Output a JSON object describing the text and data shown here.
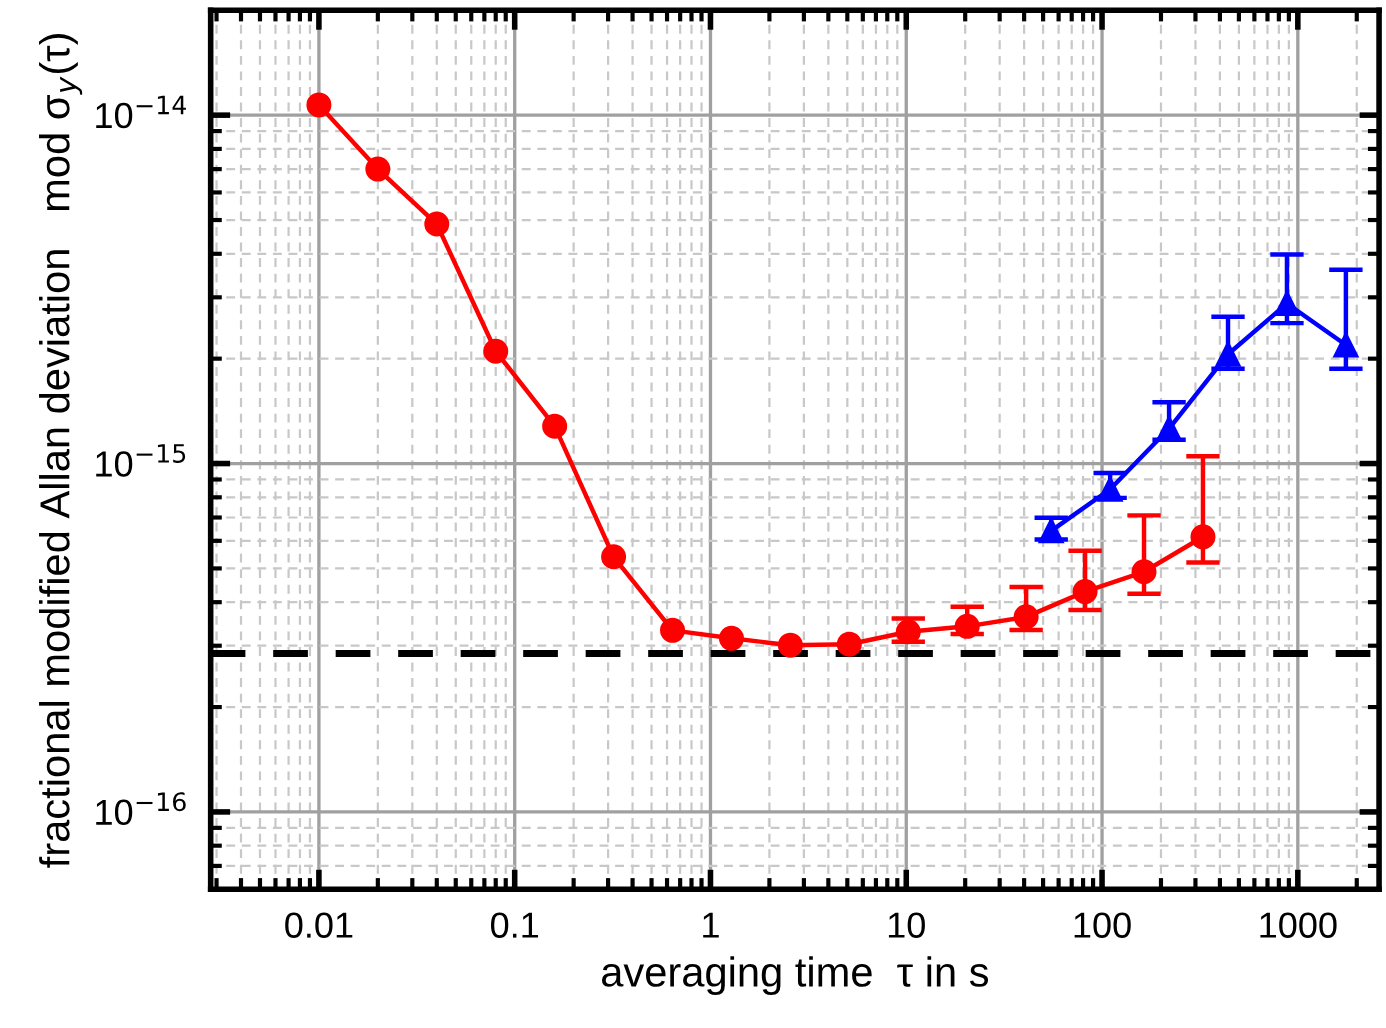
{
  "chart_data": {
    "type": "line",
    "xlabel": "averaging time  τ in s",
    "ylabel": "fractional modified Allan deviation   mod σ$_{y}$(τ)",
    "log": "xy",
    "grid": true,
    "legend": false,
    "xlim": [
      0.0028,
      2600
    ],
    "ylim": [
      6e-17,
      2e-14
    ],
    "xticks": [
      0.01,
      0.1,
      1,
      10,
      100,
      1000
    ],
    "yticks": [
      {
        "value": 1e-16,
        "label": "10$^{−16}$"
      },
      {
        "value": 1e-15,
        "label": "10$^{−15}$"
      },
      {
        "value": 1e-14,
        "label": "10$^{−14}$"
      }
    ],
    "series": [
      {
        "color": "#ff0000",
        "marker": "circle",
        "x": [
          0.01,
          0.02,
          0.04,
          0.08,
          0.16,
          0.32,
          0.64,
          1.28,
          2.56,
          5.12,
          10.24,
          20.48,
          40.96,
          81.92,
          163.84,
          327.68
        ],
        "values": [
          1.07e-14,
          7e-15,
          4.87e-15,
          2.1e-15,
          1.28e-15,
          5.4e-16,
          3.32e-16,
          3.15e-16,
          3.01e-16,
          3.03e-16,
          3.29e-16,
          3.41e-16,
          3.63e-16,
          4.29e-16,
          4.89e-16,
          6.16e-16
        ],
        "errors": [
          null,
          null,
          null,
          null,
          null,
          null,
          null,
          null,
          null,
          null,
          [
            3.08e-16,
            3.59e-16
          ],
          [
            3.24e-16,
            3.88e-16
          ],
          [
            3.33e-16,
            4.42e-16
          ],
          [
            3.8e-16,
            5.62e-16
          ],
          [
            4.23e-16,
            7.1e-16
          ],
          [
            5.2e-16,
            1.05e-15
          ]
        ]
      },
      {
        "color": "#0000ff",
        "marker": "triangle",
        "x": [
          55,
          110,
          220,
          440,
          880,
          1760
        ],
        "values": [
          6.41e-16,
          8.44e-16,
          1.26e-15,
          2.06e-15,
          2.88e-15,
          2.19e-15
        ],
        "errors": [
          [
            6.05e-16,
            6.99e-16
          ],
          [
            7.97e-16,
            9.4e-16
          ],
          [
            1.17e-15,
            1.5e-15
          ],
          [
            1.87e-15,
            2.64e-15
          ],
          [
            2.53e-15,
            3.98e-15
          ],
          [
            1.87e-15,
            3.6e-15
          ]
        ]
      }
    ],
    "ref_lines": [
      {
        "axis": "y",
        "value": 2.85e-16,
        "color": "#000000",
        "line_style": "dashed"
      }
    ]
  }
}
